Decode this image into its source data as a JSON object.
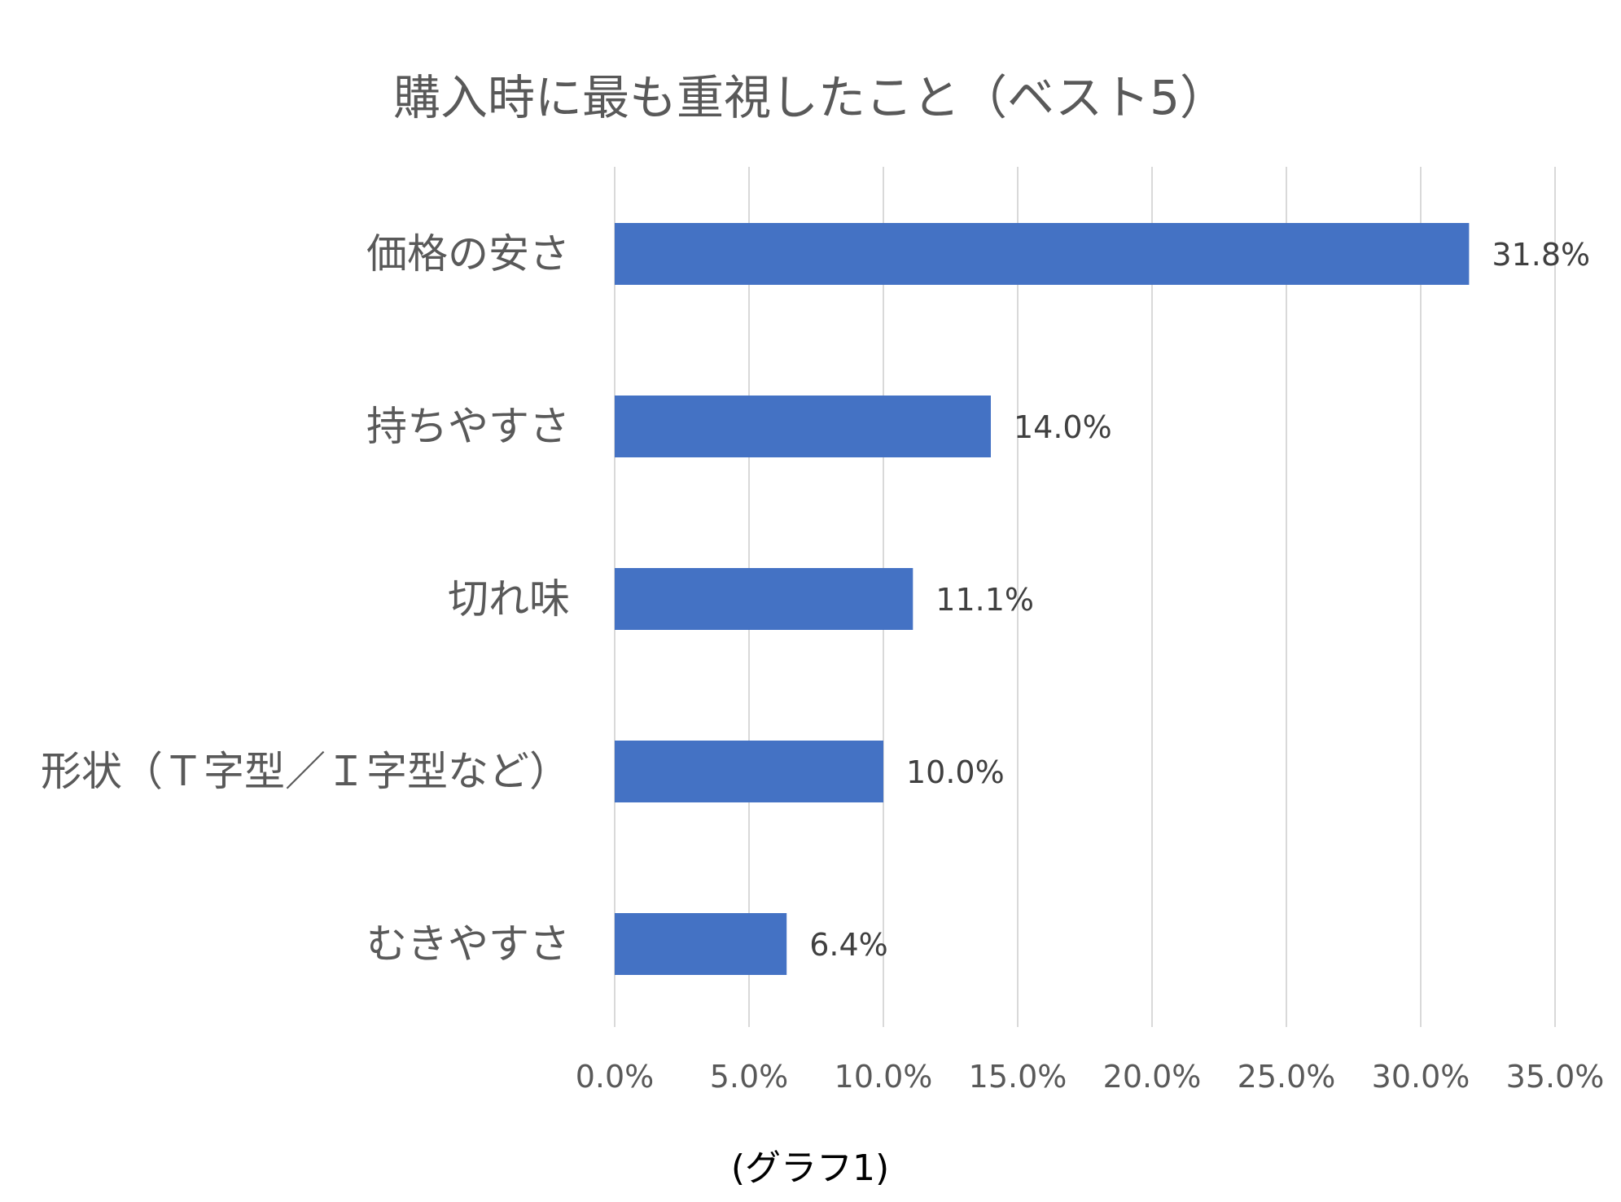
{
  "chart_data": {
    "type": "bar",
    "orientation": "horizontal",
    "title": "購入時に最も重視したこと（ベスト5）",
    "categories": [
      "価格の安さ",
      "持ちやすさ",
      "切れ味",
      "形状（Ｔ字型／Ｉ字型など）",
      "むきやすさ"
    ],
    "values": [
      31.8,
      14.0,
      11.1,
      10.0,
      6.4
    ],
    "data_labels": [
      "31.8%",
      "14.0%",
      "11.1%",
      "10.0%",
      "6.4%"
    ],
    "x_ticks": [
      0,
      5,
      10,
      15,
      20,
      25,
      30,
      35
    ],
    "x_tick_labels": [
      "0.0%",
      "5.0%",
      "10.0%",
      "15.0%",
      "20.0%",
      "25.0%",
      "30.0%",
      "35.0%"
    ],
    "xlim": [
      0,
      35
    ],
    "xlabel": "",
    "ylabel": "",
    "grid": "vertical",
    "legend": "none",
    "bar_color": "#4472C4",
    "grid_color": "#D9D9D9"
  },
  "caption": "(グラフ1)"
}
